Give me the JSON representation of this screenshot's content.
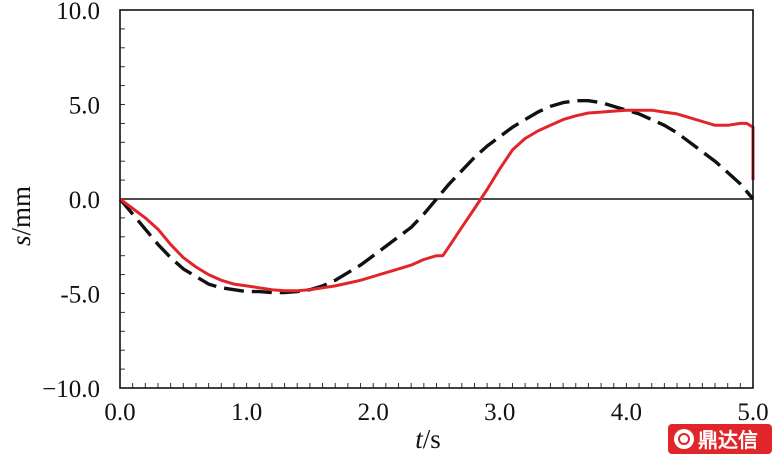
{
  "chart_data": {
    "type": "line",
    "title": "",
    "xlabel_var": "t",
    "xlabel_sep": "/",
    "xlabel_unit": "s",
    "ylabel_var": "s",
    "ylabel_sep": "/",
    "ylabel_unit": "mm",
    "xlim": [
      0,
      5
    ],
    "ylim": [
      -10,
      10
    ],
    "x_ticks": [
      0,
      1,
      2,
      3,
      4,
      5
    ],
    "x_tick_labels": [
      "0.0",
      "1.0",
      "2.0",
      "3.0",
      "4.0",
      "5.0"
    ],
    "y_ticks": [
      -10,
      -5,
      0,
      5,
      10
    ],
    "y_tick_labels": [
      "−10.0",
      "-5.0",
      "0.0",
      "5.0",
      "10.0"
    ],
    "zero_line": true,
    "series": [
      {
        "name": "dashed",
        "color": "#111111",
        "style": "dashed",
        "x": [
          0.0,
          0.1,
          0.2,
          0.3,
          0.4,
          0.5,
          0.6,
          0.7,
          0.8,
          0.9,
          1.0,
          1.1,
          1.2,
          1.3,
          1.4,
          1.5,
          1.6,
          1.7,
          1.8,
          1.9,
          2.0,
          2.1,
          2.2,
          2.3,
          2.4,
          2.5,
          2.6,
          2.7,
          2.8,
          2.9,
          3.0,
          3.1,
          3.2,
          3.3,
          3.4,
          3.5,
          3.6,
          3.7,
          3.8,
          3.9,
          4.0,
          4.1,
          4.2,
          4.3,
          4.4,
          4.5,
          4.6,
          4.7,
          4.8,
          4.9,
          5.0
        ],
        "y": [
          0.0,
          -0.8,
          -1.6,
          -2.4,
          -3.1,
          -3.7,
          -4.1,
          -4.5,
          -4.7,
          -4.8,
          -4.9,
          -4.9,
          -4.95,
          -4.95,
          -4.9,
          -4.8,
          -4.6,
          -4.3,
          -3.9,
          -3.5,
          -3.0,
          -2.5,
          -2.0,
          -1.5,
          -0.8,
          0.0,
          0.8,
          1.5,
          2.2,
          2.8,
          3.3,
          3.8,
          4.2,
          4.6,
          4.9,
          5.1,
          5.2,
          5.2,
          5.1,
          4.9,
          4.7,
          4.5,
          4.2,
          3.9,
          3.5,
          3.0,
          2.5,
          2.0,
          1.4,
          0.8,
          0.0
        ]
      },
      {
        "name": "solid",
        "color": "#e0262a",
        "style": "solid",
        "x": [
          0.0,
          0.1,
          0.2,
          0.3,
          0.4,
          0.5,
          0.6,
          0.7,
          0.8,
          0.9,
          1.0,
          1.1,
          1.2,
          1.3,
          1.4,
          1.5,
          1.6,
          1.7,
          1.8,
          1.9,
          2.0,
          2.1,
          2.2,
          2.3,
          2.4,
          2.5,
          2.55,
          2.6,
          2.7,
          2.8,
          2.9,
          3.0,
          3.1,
          3.2,
          3.3,
          3.4,
          3.5,
          3.6,
          3.7,
          3.8,
          3.9,
          4.0,
          4.1,
          4.2,
          4.3,
          4.4,
          4.5,
          4.6,
          4.7,
          4.8,
          4.9,
          4.95,
          5.0,
          5.0
        ],
        "y": [
          0.0,
          -0.5,
          -1.0,
          -1.6,
          -2.4,
          -3.1,
          -3.6,
          -4.0,
          -4.3,
          -4.5,
          -4.6,
          -4.7,
          -4.8,
          -4.85,
          -4.85,
          -4.8,
          -4.7,
          -4.6,
          -4.45,
          -4.3,
          -4.1,
          -3.9,
          -3.7,
          -3.5,
          -3.2,
          -3.0,
          -3.0,
          -2.5,
          -1.5,
          -0.5,
          0.5,
          1.6,
          2.6,
          3.2,
          3.6,
          3.9,
          4.2,
          4.4,
          4.55,
          4.6,
          4.65,
          4.7,
          4.7,
          4.7,
          4.6,
          4.5,
          4.3,
          4.1,
          3.9,
          3.9,
          4.0,
          4.0,
          3.8,
          1.0
        ]
      }
    ]
  },
  "watermark": {
    "text": "鼎达信",
    "color": "#e0262a"
  }
}
